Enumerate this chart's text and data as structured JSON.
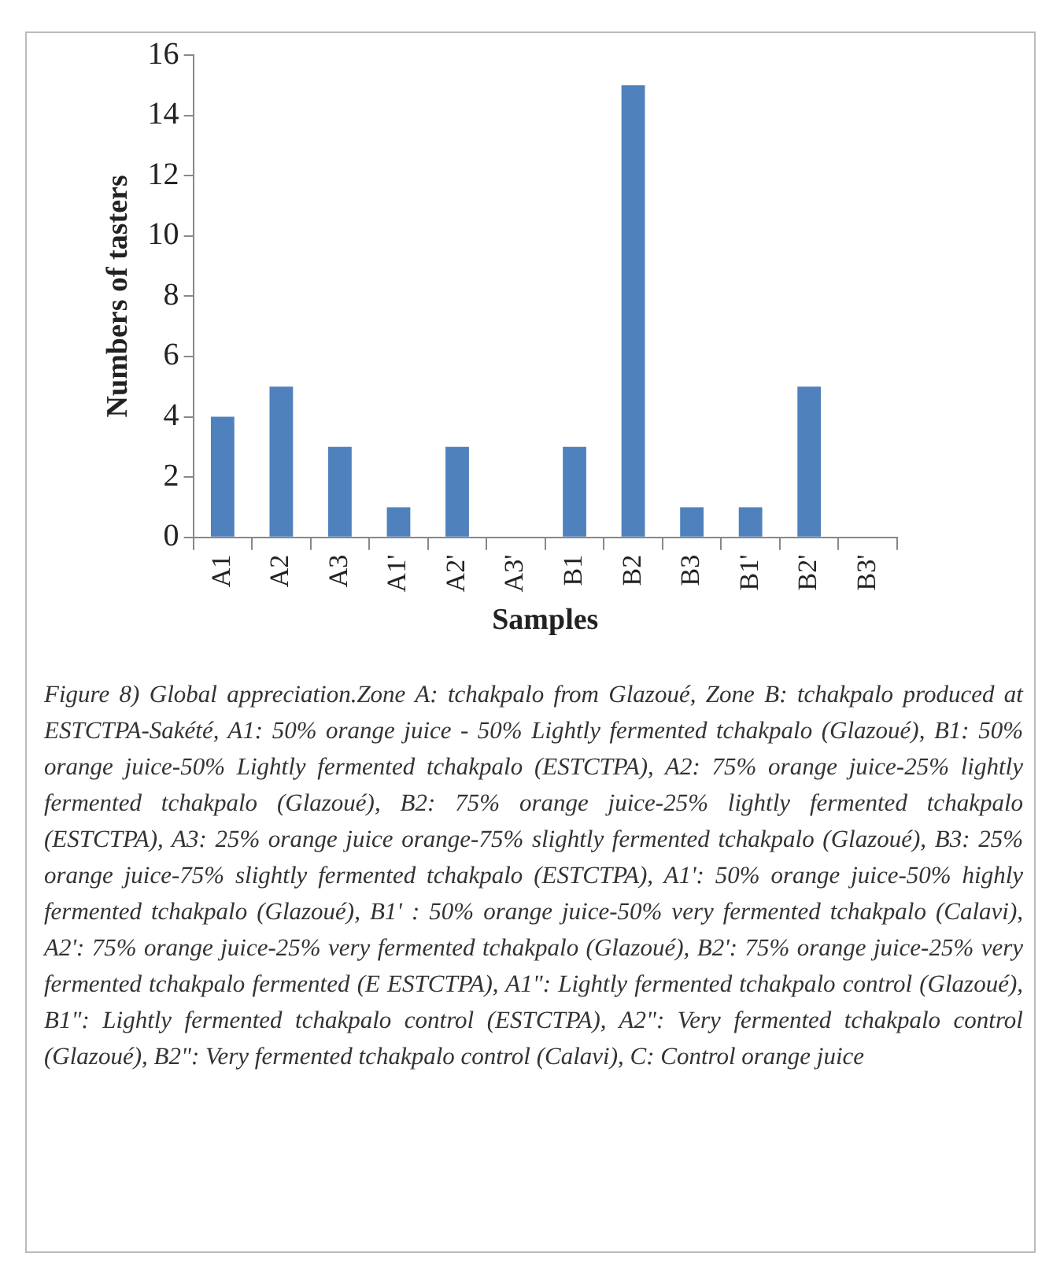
{
  "chart_data": {
    "type": "bar",
    "xlabel": "Samples",
    "ylabel": "Numbers of tasters",
    "categories": [
      "A1",
      "A2",
      "A3",
      "A1'",
      "A2'",
      "A3'",
      "B1",
      "B2",
      "B3",
      "B1'",
      "B2'",
      "B3'"
    ],
    "values": [
      4,
      5,
      3,
      1,
      3,
      0,
      3,
      15,
      1,
      1,
      5,
      0
    ],
    "color": "#4f81bd",
    "ylim": [
      0,
      16
    ],
    "yticks": [
      0,
      2,
      4,
      6,
      8,
      10,
      12,
      14,
      16
    ],
    "grid": false,
    "legend": false,
    "annotations": [
      "Figure 8) Global appreciation.Zone A: tchakpalo from Glazoué, Zone B: tchakpalo produced at ESTCTPA-Sakété, A1: 50% orange juice - 50% Lightly fermented tchakpalo (Glazoué), B1: 50% orange juice-50% Lightly fermented tchakpalo (ESTCTPA), A2: 75% orange juice-25% lightly fermented tchakpalo (Glazoué), B2: 75% orange juice-25% lightly fermented tchakpalo (ESTCTPA), A3: 25% orange juice orange-75% slightly fermented tchakpalo (Glazoué), B3: 25% orange juice-75% slightly fermented tchakpalo (ESTCTPA), A1': 50% orange juice-50% highly fermented tchakpalo (Glazoué), B1' : 50% orange juice-50% very fermented tchakpalo (Calavi), A2': 75% orange juice-25% very fermented tchakpalo (Glazoué), B2': 75% orange juice-25% very fermented tchakpalo fermented (E ESTCTPA), A1\": Lightly fermented tchakpalo control (Glazoué), B1\": Lightly fermented tchakpalo control (ESTCTPA), A2\": Very fermented tchakpalo control (Glazoué), B2\": Very fermented tchakpalo control (Calavi), C: Control orange juice"
    ]
  }
}
